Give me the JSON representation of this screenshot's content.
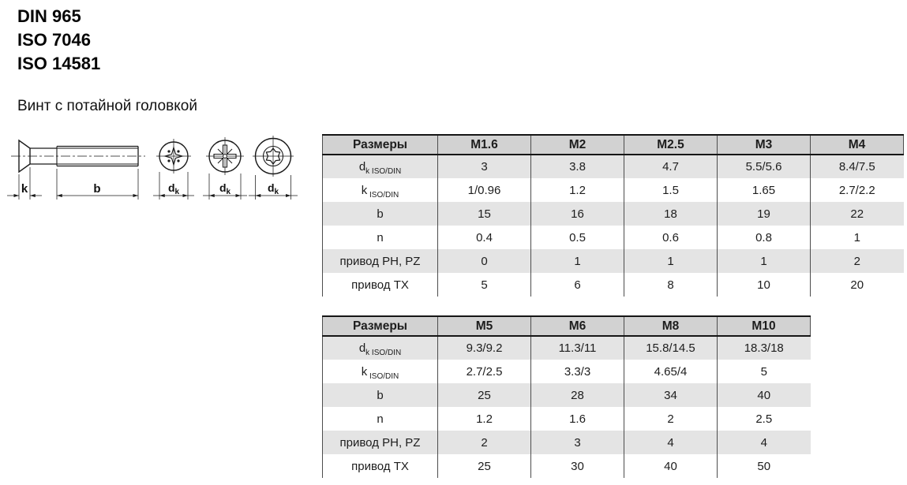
{
  "header": {
    "standards": [
      "DIN 965",
      "ISO 7046",
      "ISO 14581"
    ],
    "product_title": "Винт с потайной головкой"
  },
  "drawing": {
    "dim_k": "k",
    "dim_b": "b",
    "dim_dk_base": "d",
    "dim_dk_sub": "k"
  },
  "colors": {
    "header_bg": "#d2d2d2",
    "stripe_bg": "#e4e4e4",
    "border_dark": "#161616",
    "grid_line": "#4d4d4d",
    "text": "#1d1d1d"
  },
  "tables": [
    {
      "title_col_header": "Размеры",
      "size_headers": [
        "M1.6",
        "M2",
        "M2.5",
        "M3",
        "M4"
      ],
      "rows": [
        {
          "label": [
            {
              "t": "d"
            },
            {
              "t": "k ISO/DIN",
              "sub": true
            }
          ],
          "values": [
            "3",
            "3.8",
            "4.7",
            "5.5/5.6",
            "8.4/7.5"
          ]
        },
        {
          "label": [
            {
              "t": "k"
            },
            {
              "t": " ISO/DIN",
              "sub": true
            }
          ],
          "values": [
            "1/0.96",
            "1.2",
            "1.5",
            "1.65",
            "2.7/2.2"
          ]
        },
        {
          "label": [
            {
              "t": "b"
            }
          ],
          "values": [
            "15",
            "16",
            "18",
            "19",
            "22"
          ]
        },
        {
          "label": [
            {
              "t": "n"
            }
          ],
          "values": [
            "0.4",
            "0.5",
            "0.6",
            "0.8",
            "1"
          ]
        },
        {
          "label": [
            {
              "t": "привод PH, PZ"
            }
          ],
          "values": [
            "0",
            "1",
            "1",
            "1",
            "2"
          ]
        },
        {
          "label": [
            {
              "t": "привод TX"
            }
          ],
          "values": [
            "5",
            "6",
            "8",
            "10",
            "20"
          ]
        }
      ]
    },
    {
      "title_col_header": "Размеры",
      "size_headers": [
        "M5",
        "M6",
        "M8",
        "M10"
      ],
      "rows": [
        {
          "label": [
            {
              "t": "d"
            },
            {
              "t": "k ISO/DIN",
              "sub": true
            }
          ],
          "values": [
            "9.3/9.2",
            "11.3/11",
            "15.8/14.5",
            "18.3/18"
          ]
        },
        {
          "label": [
            {
              "t": "k"
            },
            {
              "t": " ISO/DIN",
              "sub": true
            }
          ],
          "values": [
            "2.7/2.5",
            "3.3/3",
            "4.65/4",
            "5"
          ]
        },
        {
          "label": [
            {
              "t": "b"
            }
          ],
          "values": [
            "25",
            "28",
            "34",
            "40"
          ]
        },
        {
          "label": [
            {
              "t": "n"
            }
          ],
          "values": [
            "1.2",
            "1.6",
            "2",
            "2.5"
          ]
        },
        {
          "label": [
            {
              "t": "привод PH, PZ"
            }
          ],
          "values": [
            "2",
            "3",
            "4",
            "4"
          ]
        },
        {
          "label": [
            {
              "t": "привод TX"
            }
          ],
          "values": [
            "25",
            "30",
            "40",
            "50"
          ]
        }
      ]
    }
  ]
}
